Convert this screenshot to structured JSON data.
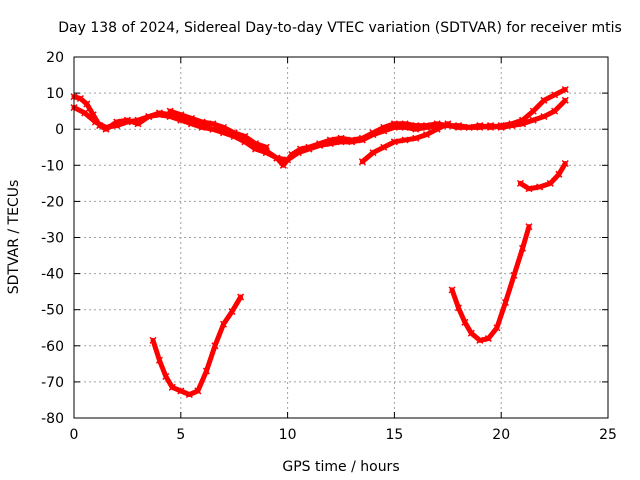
{
  "chart_data": {
    "type": "scatter",
    "title": "Day 138 of 2024, Sidereal Day-to-day VTEC variation (SDTVAR) for receiver mtis",
    "xlabel": "GPS time / hours",
    "ylabel": "SDTVAR / TECUs",
    "xlim": [
      0,
      25
    ],
    "ylim": [
      -80,
      20
    ],
    "xticks": [
      0,
      5,
      10,
      15,
      20,
      25
    ],
    "yticks": [
      20,
      10,
      0,
      -10,
      -20,
      -30,
      -40,
      -50,
      -60,
      -70,
      -80
    ],
    "grid": true,
    "marker_color": "#ff0000",
    "series": [
      {
        "values": [
          [
            0.0,
            9.0
          ],
          [
            0.3,
            8.5
          ],
          [
            0.6,
            7.0
          ],
          [
            0.9,
            4.0
          ],
          [
            1.2,
            1.0
          ],
          [
            1.5,
            0.0
          ],
          [
            2.0,
            2.0
          ],
          [
            2.5,
            2.5
          ],
          [
            3.0,
            1.5
          ],
          [
            3.5,
            3.5
          ],
          [
            4.0,
            4.5
          ],
          [
            4.5,
            4.0
          ],
          [
            5.0,
            3.5
          ],
          [
            5.5,
            2.0
          ],
          [
            6.0,
            1.0
          ],
          [
            6.5,
            0.0
          ],
          [
            7.0,
            -0.5
          ],
          [
            7.5,
            -1.5
          ],
          [
            8.0,
            -3.0
          ],
          [
            8.5,
            -5.0
          ],
          [
            9.0,
            -6.0
          ],
          [
            9.5,
            -8.0
          ],
          [
            9.8,
            -10.0
          ],
          [
            10.2,
            -7.0
          ],
          [
            10.6,
            -5.5
          ],
          [
            11.0,
            -5.0
          ],
          [
            11.5,
            -4.0
          ],
          [
            12.0,
            -3.0
          ],
          [
            12.5,
            -2.5
          ],
          [
            13.0,
            -3.0
          ],
          [
            13.5,
            -2.5
          ],
          [
            14.0,
            -1.0
          ],
          [
            14.5,
            0.5
          ],
          [
            15.0,
            1.5
          ],
          [
            15.5,
            1.5
          ],
          [
            16.0,
            1.0
          ],
          [
            16.5,
            1.0
          ],
          [
            17.0,
            1.5
          ],
          [
            17.5,
            1.0
          ],
          [
            18.0,
            1.0
          ],
          [
            18.5,
            0.5
          ],
          [
            19.0,
            1.0
          ],
          [
            19.5,
            0.5
          ],
          [
            20.0,
            1.0
          ],
          [
            20.5,
            1.5
          ],
          [
            21.0,
            2.5
          ],
          [
            21.5,
            5.0
          ],
          [
            22.0,
            8.0
          ],
          [
            22.5,
            9.5
          ],
          [
            23.0,
            11.0
          ]
        ]
      },
      {
        "values": [
          [
            0.0,
            6.0
          ],
          [
            0.5,
            4.5
          ],
          [
            1.0,
            2.0
          ],
          [
            1.5,
            0.5
          ],
          [
            2.0,
            1.0
          ],
          [
            2.5,
            2.0
          ],
          [
            3.0,
            2.5
          ],
          [
            3.5,
            3.5
          ],
          [
            4.0,
            4.0
          ],
          [
            4.5,
            3.5
          ],
          [
            5.0,
            2.5
          ],
          [
            5.5,
            1.5
          ],
          [
            6.0,
            0.5
          ],
          [
            6.5,
            0.0
          ],
          [
            7.0,
            -1.0
          ],
          [
            7.5,
            -2.0
          ],
          [
            8.0,
            -3.5
          ],
          [
            8.5,
            -5.5
          ],
          [
            9.0,
            -6.5
          ],
          [
            9.5,
            -8.0
          ],
          [
            10.0,
            -8.5
          ],
          [
            10.5,
            -6.5
          ],
          [
            11.0,
            -5.5
          ],
          [
            11.5,
            -4.5
          ],
          [
            12.0,
            -4.0
          ],
          [
            12.5,
            -3.5
          ],
          [
            13.0,
            -3.5
          ],
          [
            13.5,
            -3.0
          ],
          [
            14.0,
            -1.5
          ],
          [
            14.5,
            -0.5
          ],
          [
            15.0,
            0.5
          ],
          [
            15.5,
            0.5
          ],
          [
            16.0,
            0.0
          ],
          [
            16.5,
            0.5
          ],
          [
            17.0,
            1.0
          ],
          [
            17.5,
            1.0
          ],
          [
            18.0,
            0.5
          ],
          [
            18.5,
            0.5
          ],
          [
            19.0,
            0.5
          ],
          [
            19.5,
            1.0
          ],
          [
            20.0,
            0.5
          ],
          [
            20.5,
            1.0
          ],
          [
            21.0,
            1.5
          ],
          [
            21.5,
            2.5
          ],
          [
            22.0,
            3.5
          ],
          [
            22.5,
            5.0
          ],
          [
            23.0,
            8.0
          ]
        ]
      },
      {
        "values": [
          [
            4.5,
            5.0
          ],
          [
            5.0,
            4.0
          ],
          [
            5.5,
            3.0
          ],
          [
            6.0,
            2.0
          ],
          [
            6.5,
            1.5
          ],
          [
            7.0,
            0.5
          ],
          [
            7.5,
            -1.0
          ],
          [
            8.0,
            -2.0
          ],
          [
            8.5,
            -4.0
          ],
          [
            9.0,
            -5.0
          ]
        ]
      },
      {
        "values": [
          [
            13.5,
            -9.0
          ],
          [
            14.0,
            -6.5
          ],
          [
            14.5,
            -5.0
          ],
          [
            15.0,
            -3.5
          ],
          [
            15.5,
            -3.0
          ],
          [
            16.0,
            -2.5
          ],
          [
            16.5,
            -1.5
          ],
          [
            17.0,
            0.0
          ],
          [
            17.5,
            1.5
          ]
        ]
      },
      {
        "values": [
          [
            3.7,
            -58.5
          ],
          [
            4.0,
            -64.0
          ],
          [
            4.3,
            -68.5
          ],
          [
            4.6,
            -71.5
          ],
          [
            5.0,
            -72.5
          ],
          [
            5.4,
            -73.5
          ],
          [
            5.8,
            -72.5
          ],
          [
            6.2,
            -67.0
          ],
          [
            6.6,
            -60.0
          ],
          [
            7.0,
            -54.0
          ],
          [
            7.4,
            -50.5
          ],
          [
            7.8,
            -46.5
          ]
        ]
      },
      {
        "values": [
          [
            17.7,
            -44.5
          ],
          [
            18.0,
            -49.5
          ],
          [
            18.3,
            -53.5
          ],
          [
            18.6,
            -56.5
          ],
          [
            19.0,
            -58.5
          ],
          [
            19.4,
            -58.0
          ],
          [
            19.8,
            -55.0
          ],
          [
            20.2,
            -48.0
          ],
          [
            20.6,
            -40.5
          ],
          [
            21.0,
            -33.0
          ],
          [
            21.3,
            -27.0
          ]
        ]
      },
      {
        "values": [
          [
            20.9,
            -15.0
          ],
          [
            21.3,
            -16.5
          ],
          [
            21.8,
            -16.0
          ],
          [
            22.3,
            -15.0
          ],
          [
            22.7,
            -12.5
          ],
          [
            23.0,
            -9.5
          ]
        ]
      }
    ]
  }
}
